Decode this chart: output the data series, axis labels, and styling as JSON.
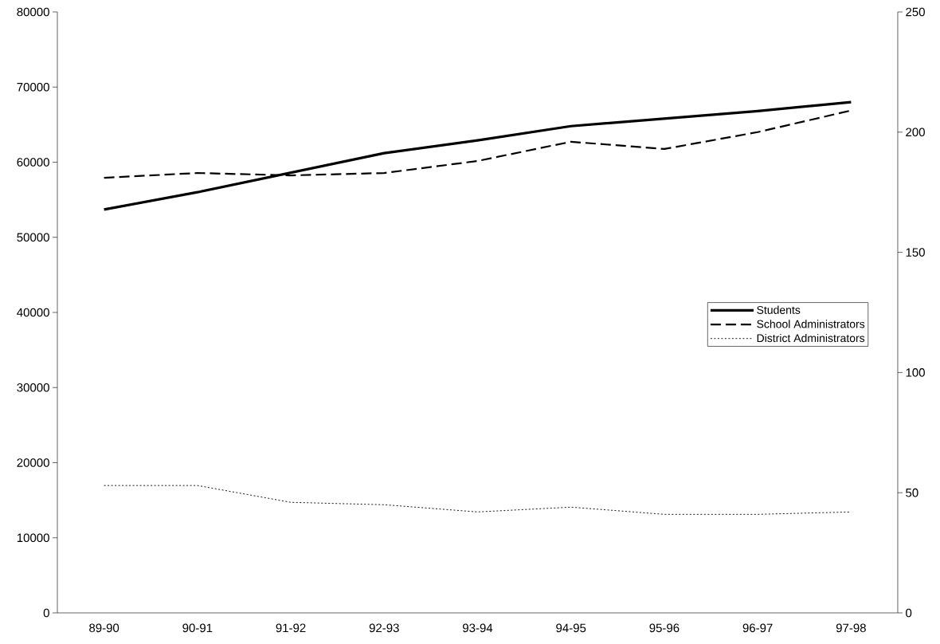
{
  "chart_data": {
    "type": "line",
    "categories": [
      "89-90",
      "90-91",
      "91-92",
      "92-93",
      "93-94",
      "94-95",
      "95-96",
      "96-97",
      "97-98"
    ],
    "series": [
      {
        "name": "Students",
        "color": "#000000",
        "line_style": "solid",
        "values": [
          53700,
          56000,
          58600,
          61200,
          62900,
          64800,
          65800,
          66800,
          68000
        ]
      },
      {
        "name": "School Administrators",
        "color": "#000000",
        "line_style": "dashed",
        "axis": "y2",
        "values": [
          181,
          183,
          182,
          183,
          188,
          196,
          193,
          200,
          209
        ]
      },
      {
        "name": "District Administrators",
        "color": "#000000",
        "line_style": "dotted",
        "axis": "y2",
        "values": [
          53,
          53,
          46,
          45,
          42,
          44,
          41,
          41,
          42
        ]
      }
    ],
    "ylim": [
      0,
      80000
    ],
    "yticks": [
      0,
      10000,
      20000,
      30000,
      40000,
      50000,
      60000,
      70000,
      80000
    ],
    "y2lim": [
      0,
      250
    ],
    "y2ticks": [
      0,
      50,
      100,
      150,
      200,
      250
    ],
    "legend": "right",
    "grid": false,
    "marker": "none"
  }
}
